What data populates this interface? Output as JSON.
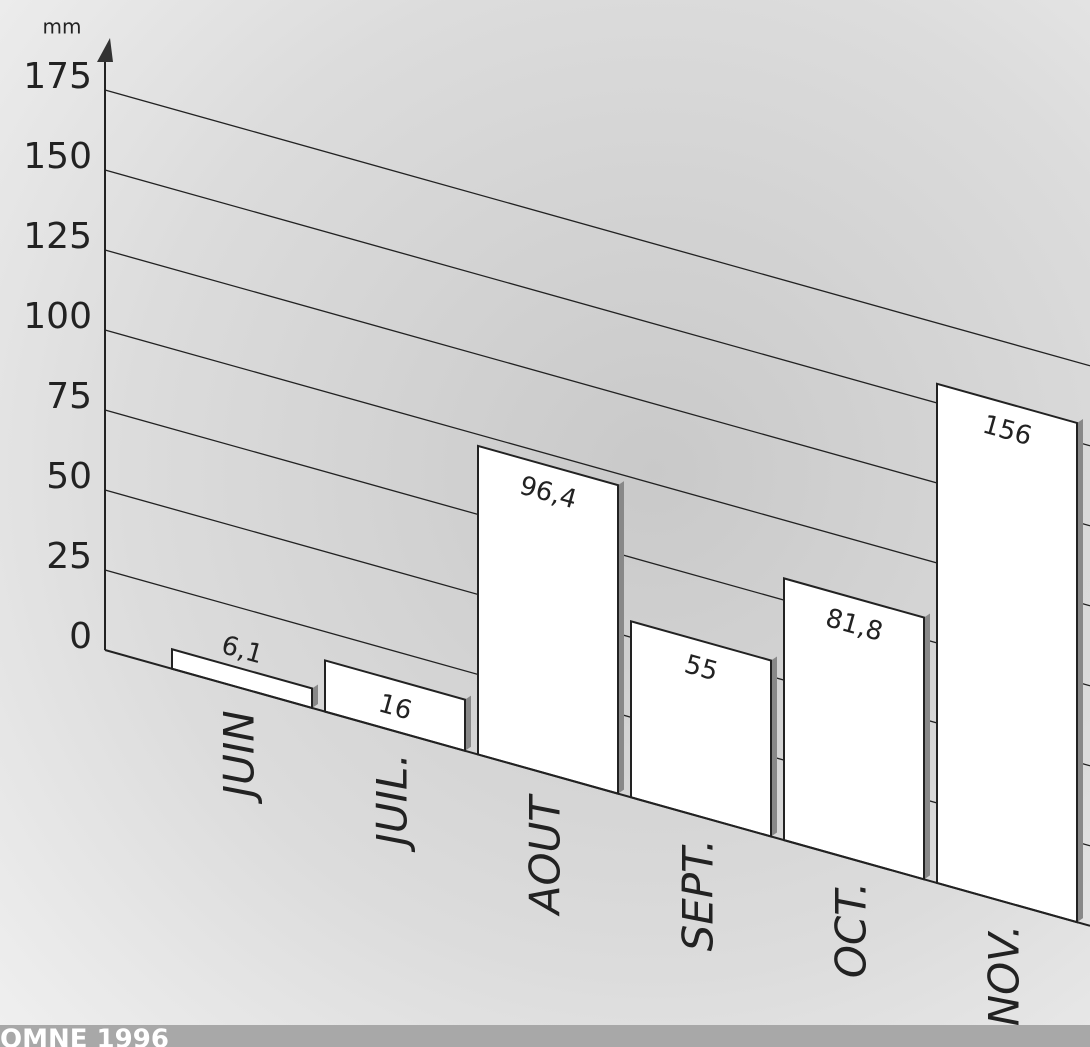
{
  "chart_data": {
    "type": "bar",
    "y_label": "mm",
    "categories": [
      "JUIN",
      "JUIL.",
      "AOUT",
      "SEPT.",
      "OCT.",
      "NOV."
    ],
    "values": [
      6.1,
      16,
      96.4,
      55,
      81.8,
      156
    ],
    "value_labels": [
      "6,1",
      "16",
      "96,4",
      "55",
      "81,8",
      "156"
    ],
    "color": "#ffffff",
    "ylim": [
      0,
      175
    ],
    "yticks": [
      0,
      25,
      50,
      75,
      100,
      125,
      150,
      175
    ],
    "grid": true
  },
  "footer": "OMNE 1996"
}
